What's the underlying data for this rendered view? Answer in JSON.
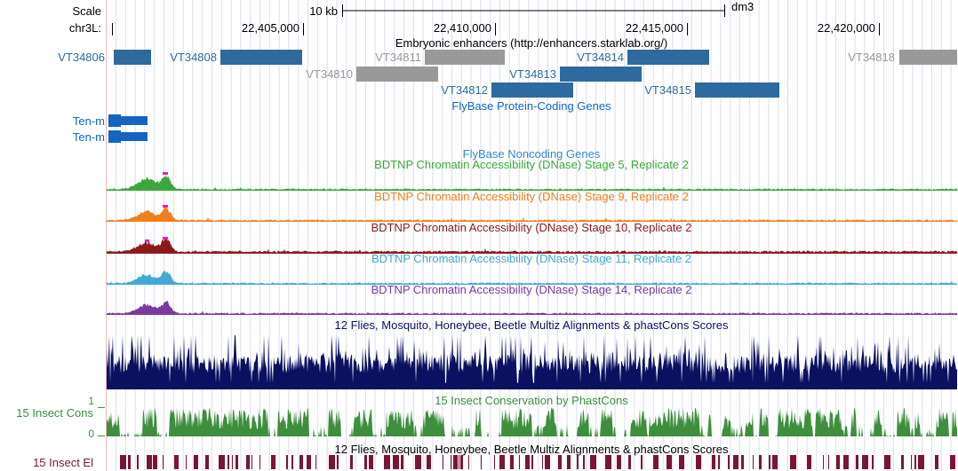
{
  "ruler": {
    "scale_label": "Scale",
    "chrom_label": "chr3L:",
    "scale_bar_label": "10 kb",
    "assembly": "dm3",
    "position_labels": [
      "22,405,000",
      "22,410,000",
      "22,415,000",
      "22,420,000"
    ]
  },
  "enhancers": {
    "title": "Embryonic enhancers (http://enhancers.starklab.org/)",
    "items": [
      {
        "name": "VT34806",
        "color": "#2e6a9e"
      },
      {
        "name": "VT34808",
        "color": "#2e6a9e"
      },
      {
        "name": "VT34811",
        "color": "#999999"
      },
      {
        "name": "VT34814",
        "color": "#2e6a9e"
      },
      {
        "name": "VT34818",
        "color": "#999999"
      },
      {
        "name": "VT34810",
        "color": "#999999"
      },
      {
        "name": "VT34813",
        "color": "#2e6a9e"
      },
      {
        "name": "VT34812",
        "color": "#2e6a9e"
      },
      {
        "name": "VT34815",
        "color": "#2e6a9e"
      }
    ]
  },
  "genes": {
    "title": "FlyBase Protein-Coding Genes",
    "items": [
      "Ten-m",
      "Ten-m"
    ],
    "color": "#1565c0"
  },
  "noncoding": {
    "title": "FlyBase Noncoding Genes",
    "color": "#3a87cf"
  },
  "dnase_tracks": [
    {
      "title": "BDTNP Chromatin Accessibility (DNase) Stage 5, Replicate 2",
      "color": "#3aa83a"
    },
    {
      "title": "BDTNP Chromatin Accessibility (DNase) Stage 9, Replicate 2",
      "color": "#f07f1c"
    },
    {
      "title": "BDTNP Chromatin Accessibility (DNase) Stage 10, Replicate 2",
      "color": "#8b1a1a"
    },
    {
      "title": "BDTNP Chromatin Accessibility (DNase) Stage 11, Replicate 2",
      "color": "#42a9d6"
    },
    {
      "title": "BDTNP Chromatin Accessibility (DNase) Stage 14, Replicate 2",
      "color": "#7a3a9e"
    }
  ],
  "multiz": {
    "title": "12 Flies, Mosquito, Honeybee, Beetle Multiz Alignments & phastCons Scores",
    "color": "#0b1160"
  },
  "cons": {
    "title": "15 Insect Conservation by PhastCons",
    "side_label": "15 Insect Cons",
    "axis_max": "1",
    "axis_min": "0",
    "color": "#3e8e3e"
  },
  "elements": {
    "title": "12 Flies, Mosquito, Honeybee, Beetle Multiz Alignments & phastCons Scores",
    "side_label": "15 Insect El",
    "color": "#7b1535"
  }
}
